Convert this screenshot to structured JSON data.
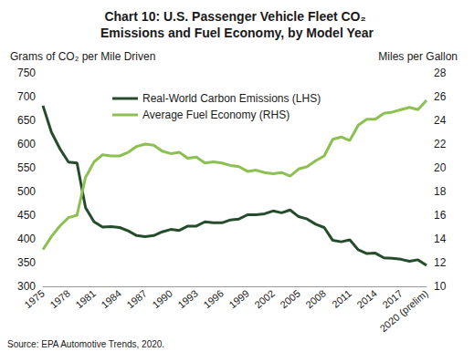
{
  "chart_data": {
    "type": "line",
    "title": "Chart 10: U.S. Passenger Vehicle Fleet CO₂ Emissions and Fuel Economy, by Model Year",
    "y_label": "Grams of CO₂ per Mile Driven",
    "y2_label": "Miles per Gallon",
    "source": "Source: EPA Automotive Trends, 2020.",
    "categories": [
      "1975",
      null,
      null,
      "1978",
      null,
      null,
      "1981",
      null,
      null,
      "1984",
      null,
      null,
      "1987",
      null,
      null,
      "1990",
      null,
      null,
      "1993",
      null,
      null,
      "1996",
      null,
      null,
      "1999",
      null,
      null,
      "2002",
      null,
      null,
      "2005",
      null,
      null,
      "2008",
      null,
      null,
      "2011",
      null,
      null,
      "2014",
      null,
      null,
      "2017",
      null,
      null,
      "2020 (prelim)"
    ],
    "series": [
      {
        "name": "Real-World Carbon Emissions (LHS)",
        "color": "#264d2b",
        "values": [
          681,
          625,
          590,
          562,
          560,
          466,
          436,
          425,
          426,
          424,
          417,
          407,
          405,
          407,
          415,
          420,
          418,
          427,
          427,
          436,
          434,
          434,
          440,
          442,
          451,
          451,
          453,
          459,
          455,
          461,
          447,
          442,
          431,
          424,
          397,
          394,
          398,
          377,
          369,
          370,
          360,
          359,
          357,
          353,
          356,
          344
        ]
      },
      {
        "name": "Average Fuel Economy (RHS)",
        "color": "#8cc152",
        "axis": "y2",
        "values": [
          13.1,
          14.2,
          15.1,
          15.8,
          16.0,
          19.2,
          20.5,
          21.1,
          21.0,
          21.0,
          21.3,
          21.8,
          22.0,
          21.9,
          21.4,
          21.2,
          21.3,
          20.8,
          20.9,
          20.4,
          20.5,
          20.4,
          20.2,
          20.1,
          19.7,
          19.8,
          19.6,
          19.5,
          19.6,
          19.3,
          19.9,
          20.1,
          20.6,
          21.0,
          22.4,
          22.6,
          22.3,
          23.6,
          24.1,
          24.1,
          24.6,
          24.7,
          24.9,
          25.1,
          24.9,
          25.7
        ]
      }
    ],
    "ylim": [
      300,
      750
    ],
    "yticks": [
      300,
      350,
      400,
      450,
      500,
      550,
      600,
      650,
      700,
      750
    ],
    "y2lim": [
      10,
      28
    ],
    "y2ticks": [
      10,
      12,
      14,
      16,
      18,
      20,
      22,
      24,
      26,
      28
    ],
    "grid": false,
    "legend": "upper left"
  }
}
